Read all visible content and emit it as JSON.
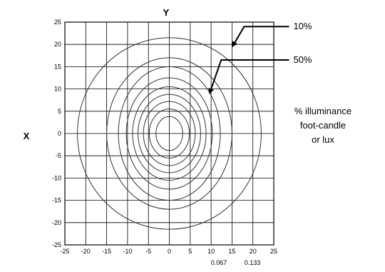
{
  "chart_data": {
    "type": "contour",
    "title": "",
    "xlabel": "X",
    "ylabel": "Y",
    "xlim": [
      -25,
      25
    ],
    "ylim": [
      -25,
      25
    ],
    "x_ticks": [
      -25,
      -20,
      -15,
      -10,
      -5,
      0,
      5,
      10,
      15,
      20,
      25
    ],
    "y_ticks": [
      25,
      20,
      15,
      10,
      5,
      0,
      -5,
      -10,
      -15,
      -20,
      -25
    ],
    "grid": true,
    "contours": [
      {
        "level": "10%",
        "rx": 22,
        "ry": 21.5
      },
      {
        "level": "",
        "rx": 15,
        "ry": 17
      },
      {
        "level": "",
        "rx": 12.2,
        "ry": 15
      },
      {
        "level": "50%",
        "rx": 10.3,
        "ry": 12.5
      },
      {
        "level": "",
        "rx": 8.8,
        "ry": 10.5
      },
      {
        "level": "",
        "rx": 7.5,
        "ry": 8.8
      },
      {
        "level": "",
        "rx": 6.2,
        "ry": 7.2
      },
      {
        "level": "",
        "rx": 4.8,
        "ry": 5.5
      },
      {
        "level": "",
        "rx": 3.2,
        "ry": 3.8
      }
    ],
    "annotations": [
      {
        "text": "10%",
        "target": [
          14.5,
          19
        ],
        "label_at": [
          29,
          24
        ]
      },
      {
        "text": "50%",
        "target": [
          9,
          8.5
        ],
        "label_at": [
          29,
          16.5
        ]
      }
    ],
    "legend_note": [
      "% illuminance",
      "foot-candle",
      "or lux"
    ],
    "bottom_values": [
      "0.067",
      "0.133"
    ]
  }
}
